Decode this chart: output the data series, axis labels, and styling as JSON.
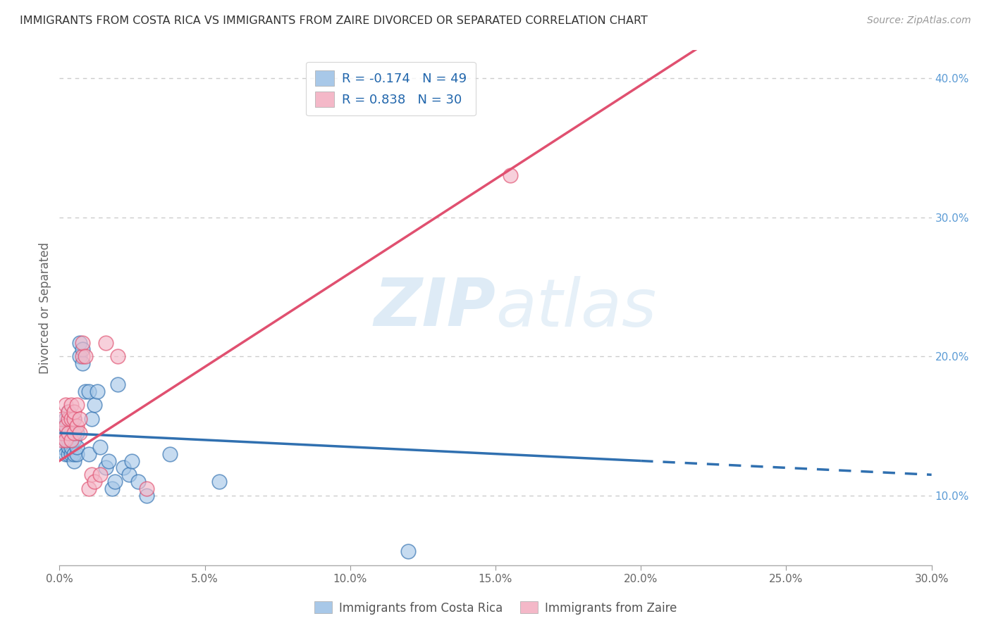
{
  "title": "IMMIGRANTS FROM COSTA RICA VS IMMIGRANTS FROM ZAIRE DIVORCED OR SEPARATED CORRELATION CHART",
  "source_text": "Source: ZipAtlas.com",
  "ylabel": "Divorced or Separated",
  "xlabel": "",
  "legend_label1": "Immigrants from Costa Rica",
  "legend_label2": "Immigrants from Zaire",
  "R1": -0.174,
  "N1": 49,
  "R2": 0.838,
  "N2": 30,
  "color_blue": "#a8c8e8",
  "color_pink": "#f4b8c8",
  "line_color_blue": "#3070b0",
  "line_color_pink": "#e05070",
  "x_costa_rica": [
    0.001,
    0.001,
    0.001,
    0.002,
    0.002,
    0.002,
    0.002,
    0.002,
    0.003,
    0.003,
    0.003,
    0.003,
    0.003,
    0.004,
    0.004,
    0.004,
    0.004,
    0.004,
    0.005,
    0.005,
    0.005,
    0.005,
    0.006,
    0.006,
    0.006,
    0.007,
    0.007,
    0.008,
    0.008,
    0.009,
    0.01,
    0.01,
    0.011,
    0.012,
    0.013,
    0.014,
    0.016,
    0.017,
    0.018,
    0.019,
    0.02,
    0.022,
    0.024,
    0.025,
    0.027,
    0.03,
    0.038,
    0.055,
    0.12
  ],
  "y_costa_rica": [
    0.135,
    0.145,
    0.15,
    0.13,
    0.14,
    0.145,
    0.15,
    0.155,
    0.13,
    0.135,
    0.14,
    0.145,
    0.16,
    0.13,
    0.135,
    0.14,
    0.145,
    0.15,
    0.125,
    0.13,
    0.14,
    0.155,
    0.13,
    0.135,
    0.145,
    0.2,
    0.21,
    0.195,
    0.205,
    0.175,
    0.13,
    0.175,
    0.155,
    0.165,
    0.175,
    0.135,
    0.12,
    0.125,
    0.105,
    0.11,
    0.18,
    0.12,
    0.115,
    0.125,
    0.11,
    0.1,
    0.13,
    0.11,
    0.06
  ],
  "x_zaire": [
    0.001,
    0.001,
    0.001,
    0.002,
    0.002,
    0.002,
    0.003,
    0.003,
    0.003,
    0.004,
    0.004,
    0.004,
    0.005,
    0.005,
    0.005,
    0.006,
    0.006,
    0.007,
    0.007,
    0.008,
    0.008,
    0.009,
    0.01,
    0.011,
    0.012,
    0.014,
    0.016,
    0.02,
    0.03,
    0.155
  ],
  "y_zaire": [
    0.14,
    0.145,
    0.155,
    0.14,
    0.15,
    0.165,
    0.145,
    0.155,
    0.16,
    0.14,
    0.155,
    0.165,
    0.145,
    0.155,
    0.16,
    0.15,
    0.165,
    0.145,
    0.155,
    0.2,
    0.21,
    0.2,
    0.105,
    0.115,
    0.11,
    0.115,
    0.21,
    0.2,
    0.105,
    0.33
  ],
  "xlim": [
    0.0,
    0.3
  ],
  "ylim": [
    0.05,
    0.42
  ],
  "xtick_positions": [
    0.0,
    0.05,
    0.1,
    0.15,
    0.2,
    0.25,
    0.3
  ],
  "xtick_labels": [
    "0.0%",
    "5.0%",
    "10.0%",
    "15.0%",
    "20.0%",
    "25.0%",
    "30.0%"
  ],
  "ytick_vals_right": [
    0.1,
    0.2,
    0.3,
    0.4
  ],
  "ytick_labels_right": [
    "10.0%",
    "20.0%",
    "30.0%",
    "40.0%"
  ],
  "watermark_zip": "ZIP",
  "watermark_atlas": "atlas",
  "background_color": "#ffffff",
  "grid_color": "#cccccc",
  "blue_line_intercept": 0.145,
  "blue_line_slope": -0.1,
  "pink_line_intercept": 0.125,
  "pink_line_slope": 1.35
}
